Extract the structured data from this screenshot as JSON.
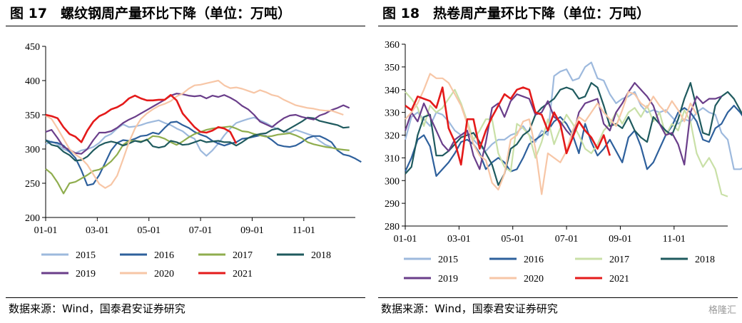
{
  "charts": [
    {
      "title": "图 17　螺纹钢周产量环比下降（单位：万吨）",
      "source": "数据来源：Wind，国泰君安证券研究"
    },
    {
      "title": "图 18　热卷周产量环比下降（单位：万吨）",
      "source": "数据来源：Wind，国泰君安证券研究"
    }
  ],
  "watermark": "格隆汇",
  "chart_data": [
    {
      "type": "line",
      "title": "螺纹钢周产量环比下降（单位：万吨）",
      "unit": "万吨",
      "ylim": [
        200,
        450
      ],
      "yticks": [
        200,
        250,
        300,
        350,
        400,
        450
      ],
      "xticks": [
        "01-01",
        "03-01",
        "05-01",
        "07-01",
        "09-01",
        "11-01"
      ],
      "grid": false,
      "legend": "bottom",
      "series": [
        {
          "name": "2015",
          "color": "#9DB9DD",
          "values": [
            307,
            311,
            307,
            300,
            296,
            294,
            298,
            300,
            303,
            309,
            318,
            322,
            330,
            336,
            332,
            333,
            335,
            338,
            340,
            342,
            338,
            335,
            330,
            326,
            319,
            315,
            298,
            290,
            298,
            308,
            320,
            330,
            338,
            341,
            344,
            346,
            342,
            338,
            333,
            329,
            326,
            324,
            328,
            325,
            322,
            319,
            312,
            306,
            303
          ]
        },
        {
          "name": "2016",
          "color": "#2E609C",
          "values": [
            313,
            310,
            309,
            305,
            296,
            287,
            269,
            247,
            249,
            262,
            280,
            298,
            309,
            313,
            312,
            315,
            319,
            320,
            324,
            322,
            331,
            339,
            340,
            335,
            331,
            325,
            321,
            318,
            312,
            308,
            305,
            308,
            310,
            315,
            316,
            318,
            320,
            319,
            313,
            306,
            304,
            303,
            305,
            310,
            316,
            319,
            319,
            315,
            310,
            298,
            292,
            290,
            286,
            281
          ]
        },
        {
          "name": "2017",
          "color": "#8FAD4E",
          "values": [
            271,
            264,
            251,
            235,
            250,
            252,
            257,
            262,
            268,
            270,
            275,
            282,
            292,
            306,
            312,
            312,
            311,
            313,
            319,
            318,
            315,
            310,
            306,
            311,
            317,
            322,
            325,
            328,
            330,
            331,
            332,
            333,
            330,
            326,
            325,
            322,
            320,
            318,
            319,
            321,
            322,
            323,
            320,
            316,
            310,
            307,
            305,
            303,
            302,
            300,
            299,
            298
          ]
        },
        {
          "name": "2018",
          "color": "#1F5A5E",
          "values": [
            313,
            306,
            304,
            296,
            291,
            283,
            284,
            289,
            298,
            305,
            309,
            311,
            309,
            305,
            308,
            312,
            310,
            314,
            304,
            302,
            304,
            312,
            310,
            306,
            307,
            310,
            313,
            310,
            311,
            312,
            310,
            310,
            305,
            310,
            316,
            320,
            322,
            323,
            328,
            330,
            325,
            330,
            335,
            340,
            346,
            345,
            341,
            339,
            337,
            335,
            331,
            332
          ]
        },
        {
          "name": "2019",
          "color": "#6A3E8A",
          "values": [
            325,
            328,
            316,
            303,
            299,
            294,
            293,
            300,
            313,
            324,
            324,
            326,
            331,
            338,
            343,
            347,
            352,
            357,
            362,
            367,
            372,
            378,
            381,
            380,
            378,
            377,
            378,
            374,
            378,
            376,
            379,
            375,
            370,
            363,
            358,
            350,
            340,
            336,
            332,
            339,
            345,
            349,
            350,
            347,
            345,
            343,
            349,
            352,
            357,
            360,
            364,
            360
          ]
        },
        {
          "name": "2020",
          "color": "#F7C6A6",
          "values": [
            349,
            344,
            330,
            315,
            300,
            292,
            286,
            277,
            263,
            249,
            243,
            248,
            261,
            285,
            310,
            330,
            344,
            352,
            358,
            363,
            366,
            370,
            377,
            381,
            388,
            393,
            394,
            396,
            398,
            400,
            393,
            389,
            390,
            388,
            385,
            382,
            386,
            383,
            379,
            377,
            372,
            368,
            364,
            362,
            360,
            359,
            357,
            356,
            356,
            353,
            350
          ]
        },
        {
          "name": "2021",
          "color": "#E41A1A",
          "values": [
            350,
            348,
            345,
            332,
            322,
            318,
            310,
            327,
            340,
            348,
            352,
            358,
            361,
            366,
            374,
            378,
            374,
            371,
            371,
            372,
            372,
            379,
            371,
            352,
            342,
            332,
            325,
            324,
            327,
            332,
            330,
            325,
            308
          ]
        }
      ]
    },
    {
      "type": "line",
      "title": "热卷周产量环比下降（单位：万吨）",
      "unit": "万吨",
      "ylim": [
        280,
        360
      ],
      "yticks": [
        280,
        290,
        300,
        310,
        320,
        330,
        340,
        350,
        360
      ],
      "xticks": [
        "01-01",
        "03-01",
        "05-01",
        "07-01",
        "09-01",
        "11-01"
      ],
      "grid": false,
      "legend": "bottom",
      "series": [
        {
          "name": "2015",
          "color": "#9DB9DD",
          "values": [
            318,
            328,
            330,
            327,
            324,
            330,
            329,
            326,
            322,
            320,
            321,
            318,
            315,
            313,
            316,
            318,
            318,
            320,
            321,
            324,
            320,
            317,
            322,
            320,
            346,
            348,
            349,
            344,
            345,
            350,
            352,
            345,
            344,
            338,
            334,
            336,
            337,
            339,
            333,
            330,
            331,
            330,
            331,
            328,
            325,
            327,
            326,
            330,
            332,
            330,
            329,
            321,
            318,
            305,
            305,
            306,
            304
          ]
        },
        {
          "name": "2016",
          "color": "#2E609C",
          "values": [
            304,
            310,
            318,
            320,
            315,
            302,
            305,
            308,
            312,
            317,
            318,
            316,
            312,
            305,
            308,
            310,
            308,
            304,
            305,
            310,
            316,
            318,
            320,
            322,
            326,
            328,
            325,
            320,
            312,
            325,
            317,
            311,
            314,
            318,
            313,
            308,
            319,
            322,
            315,
            305,
            308,
            314,
            320,
            324,
            330,
            332,
            330,
            326,
            318,
            317,
            323,
            325,
            330,
            333,
            330,
            326,
            318,
            317,
            323,
            327,
            330,
            332,
            337
          ]
        },
        {
          "name": "2017",
          "color": "#C9E0A7",
          "values": [
            339,
            336,
            332,
            324,
            333,
            330,
            332,
            336,
            340,
            334,
            326,
            318,
            322,
            327,
            327,
            312,
            306,
            304,
            325,
            323,
            320,
            310,
            317,
            327,
            316,
            323,
            329,
            325,
            320,
            314,
            312,
            316,
            322,
            325,
            330,
            325,
            330,
            332,
            328,
            333,
            326,
            330,
            320,
            325,
            322,
            331,
            326,
            312,
            306,
            310,
            305,
            294,
            293
          ]
        },
        {
          "name": "2018",
          "color": "#1F5A5E",
          "values": [
            303,
            306,
            320,
            328,
            329,
            311,
            311,
            313,
            316,
            319,
            320,
            321,
            317,
            312,
            307,
            298,
            303,
            314,
            316,
            320,
            322,
            329,
            332,
            334,
            336,
            340,
            341,
            340,
            336,
            337,
            343,
            341,
            333,
            324,
            325,
            323,
            328,
            322,
            319,
            317,
            328,
            325,
            322,
            320,
            327,
            336,
            343,
            332,
            321,
            320,
            333,
            337,
            339,
            336,
            331,
            326,
            298,
            302,
            306,
            310
          ]
        },
        {
          "name": "2019",
          "color": "#6A3E8A",
          "values": [
            322,
            330,
            326,
            334,
            328,
            322,
            316,
            313,
            318,
            320,
            322,
            311,
            305,
            317,
            332,
            334,
            328,
            335,
            338,
            337,
            336,
            329,
            330,
            335,
            328,
            326,
            322,
            319,
            330,
            334,
            335,
            336,
            325,
            322,
            330,
            334,
            339,
            343,
            340,
            337,
            333,
            325,
            320,
            321,
            316,
            307,
            330,
            337,
            334,
            336,
            336,
            337
          ]
        },
        {
          "name": "2020",
          "color": "#F7C6A6",
          "values": [
            327,
            330,
            334,
            340,
            347,
            345,
            345,
            343,
            338,
            333,
            325,
            316,
            311,
            309,
            299,
            296,
            303,
            318,
            320,
            326,
            327,
            314,
            294,
            312,
            310,
            308,
            313,
            322,
            328,
            326,
            330,
            334,
            330,
            327,
            324,
            331,
            339,
            338,
            334,
            332,
            337,
            333,
            330,
            335,
            331,
            326,
            334,
            329
          ]
        },
        {
          "name": "2021",
          "color": "#E41A1A",
          "values": [
            333,
            331,
            337,
            336,
            335,
            332,
            341,
            323,
            317,
            307,
            327,
            327,
            314,
            322,
            328,
            333,
            338,
            336,
            340,
            341,
            340,
            330,
            329,
            322,
            330,
            325,
            312,
            319,
            326,
            322,
            319,
            314,
            320,
            311
          ]
        }
      ]
    }
  ]
}
